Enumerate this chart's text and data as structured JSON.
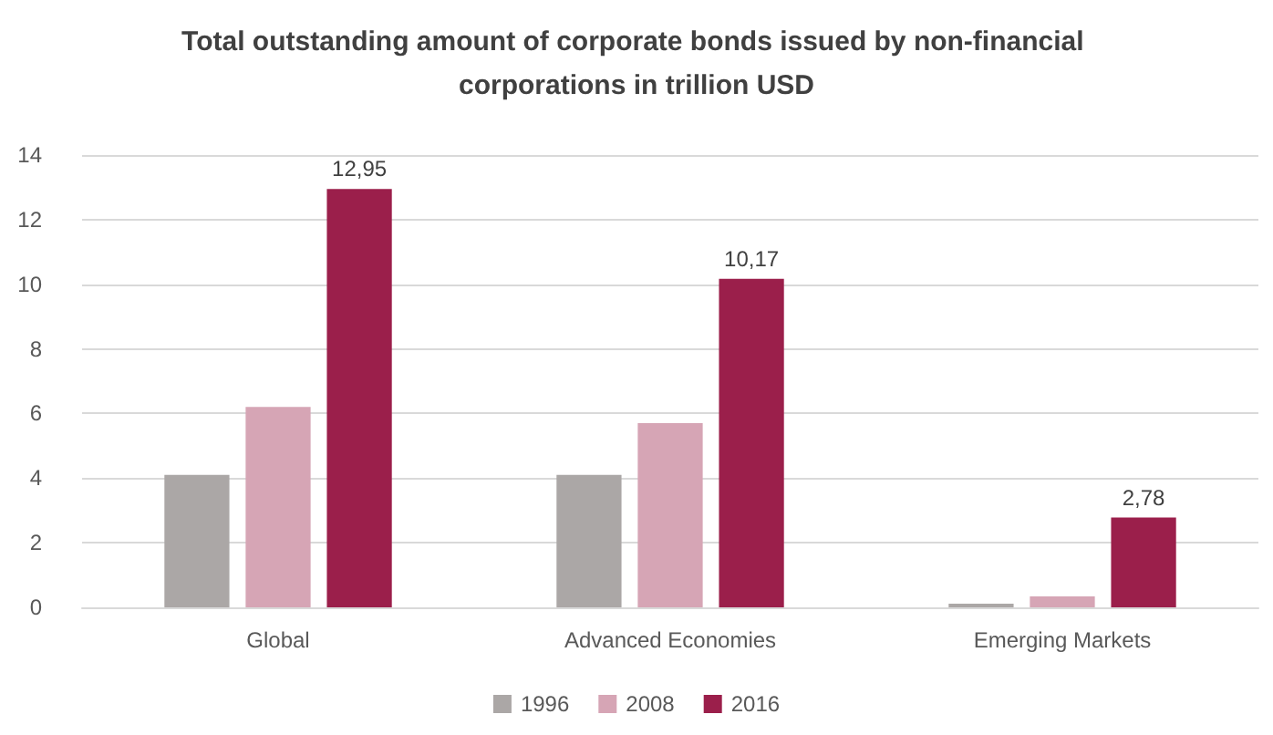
{
  "chart_data": {
    "type": "bar",
    "title": "Total outstanding amount of corporate bonds issued by non-financial corporations in trillion USD",
    "categories": [
      "Global",
      "Advanced Economies",
      "Emerging Markets"
    ],
    "series": [
      {
        "name": "1996",
        "color": "#aba7a6",
        "values": [
          4.1,
          4.1,
          0.11
        ]
      },
      {
        "name": "2008",
        "color": "#d6a5b5",
        "values": [
          6.2,
          5.7,
          0.34
        ]
      },
      {
        "name": "2016",
        "color": "#9b1f4b",
        "values": [
          12.95,
          10.17,
          2.78
        ],
        "value_labels": [
          "12,95",
          "10,17",
          "2,78"
        ]
      }
    ],
    "ylim": [
      0,
      14
    ],
    "yticks": [
      0,
      2,
      4,
      6,
      8,
      10,
      12,
      14
    ],
    "grid": "y",
    "legend": "bottom"
  }
}
